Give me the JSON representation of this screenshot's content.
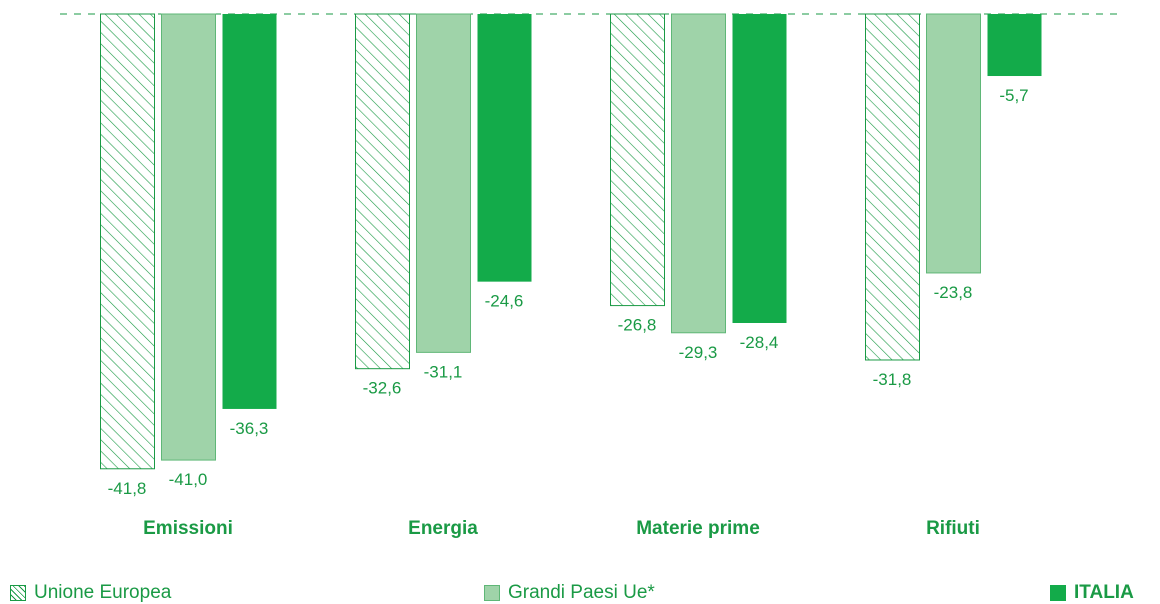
{
  "chart_data": {
    "type": "bar",
    "categories": [
      "Emissioni",
      "Energia",
      "Materie prime",
      "Rifiuti"
    ],
    "series": [
      {
        "name": "Unione Europea",
        "values": [
          -41.8,
          -32.6,
          -26.8,
          -31.8
        ],
        "labels": [
          "-41,8",
          "-32,6",
          "-26,8",
          "-31,8"
        ],
        "style": "hatched",
        "color": "#1a9a45"
      },
      {
        "name": "Grandi Paesi Ue*",
        "values": [
          -41.0,
          -31.1,
          -29.3,
          -23.8
        ],
        "labels": [
          "-41,0",
          "-31,1",
          "-29,3",
          "-23,8"
        ],
        "style": "light",
        "color": "#9fd3a9"
      },
      {
        "name": "ITALIA",
        "values": [
          -36.3,
          -24.6,
          -28.4,
          -5.7
        ],
        "labels": [
          "-36,3",
          "-24,6",
          "-28,4",
          "-5,7"
        ],
        "style": "solid",
        "color": "#13ab4a"
      }
    ],
    "ylim": [
      -41.8,
      0
    ],
    "baseline": 0,
    "legend_position": "bottom",
    "grid": false
  },
  "legend": {
    "eu": "Unione Europea",
    "big": "Grandi Paesi Ue*",
    "it": "ITALIA"
  },
  "colors": {
    "accent": "#1a9a45",
    "light_fill": "#9fd3a9",
    "light_stroke": "#5fb777",
    "dark_fill": "#13ab4a"
  }
}
